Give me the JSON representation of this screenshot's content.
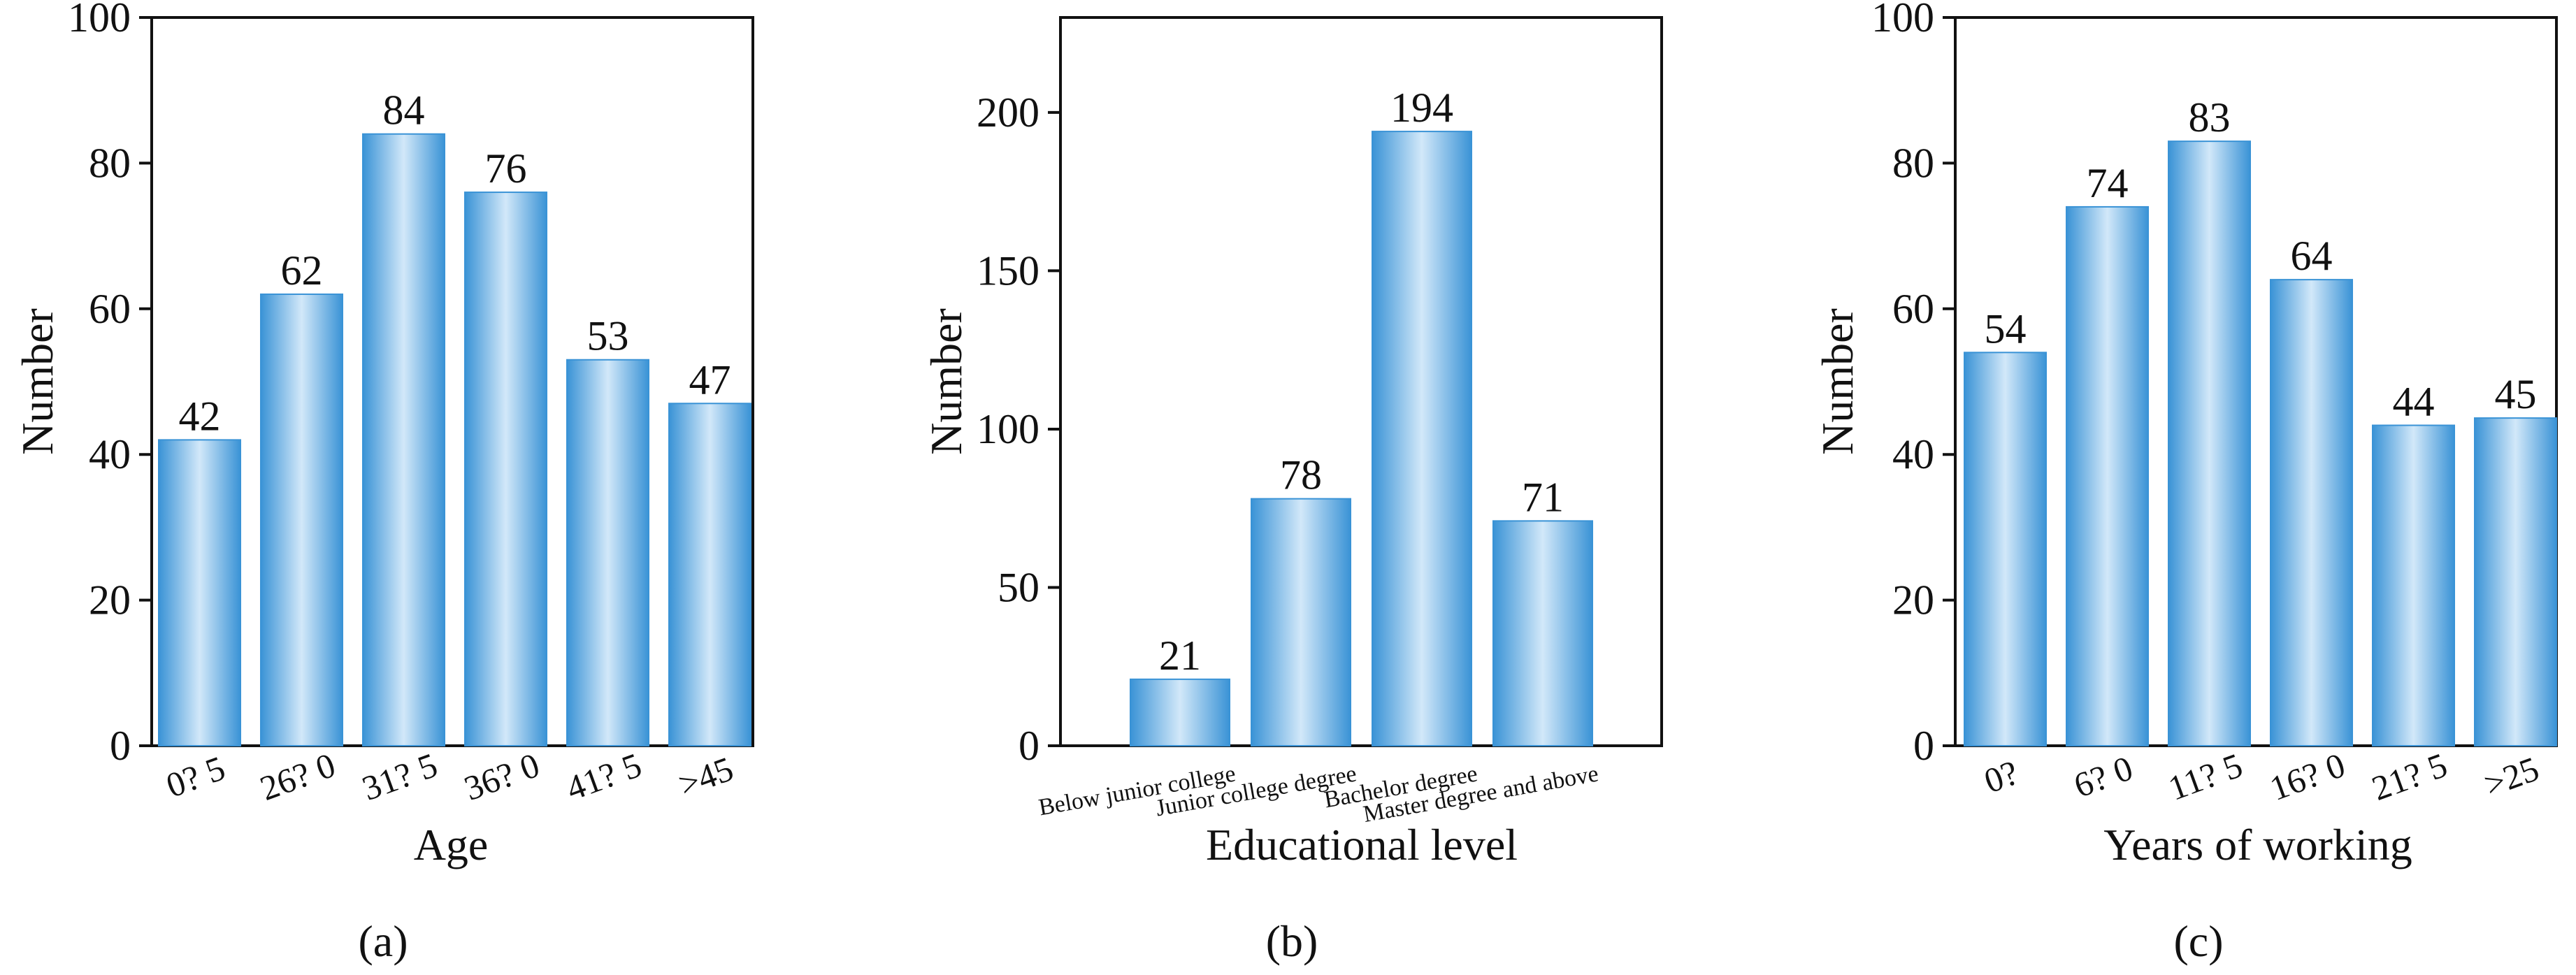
{
  "colors": {
    "bar_edge": "#3a93d6",
    "bar_mid": "#cfe6f8",
    "axis": "#111111",
    "background": "#ffffff"
  },
  "chart_data": [
    {
      "type": "bar",
      "panel_label": "(a)",
      "title": "",
      "xlabel": "Age",
      "ylabel": "Number",
      "ylim": [
        0,
        100
      ],
      "yticks": [
        0,
        20,
        40,
        60,
        80,
        100
      ],
      "categories": [
        "0? 5",
        "26? 0",
        "31? 5",
        "36? 0",
        "41? 5",
        ">45"
      ],
      "values": [
        42,
        62,
        84,
        76,
        53,
        47
      ],
      "data_labels": [
        "42",
        "62",
        "84",
        "76",
        "53",
        "47"
      ],
      "grid": false,
      "legend": "none"
    },
    {
      "type": "bar",
      "panel_label": "(b)",
      "title": "",
      "xlabel": "Educational level",
      "ylabel": "Number",
      "ylim": [
        0,
        230
      ],
      "yticks": [
        0,
        50,
        100,
        150,
        200
      ],
      "categories": [
        "Below junior college",
        "Junior college degree",
        "Bachelor degree",
        "Master degree and above"
      ],
      "values": [
        21,
        78,
        194,
        71
      ],
      "data_labels": [
        "21",
        "78",
        "194",
        "71"
      ],
      "grid": false,
      "legend": "none"
    },
    {
      "type": "bar",
      "panel_label": "(c)",
      "title": "",
      "xlabel": "Years of working",
      "ylabel": "Number",
      "ylim": [
        0,
        100
      ],
      "yticks": [
        0,
        20,
        40,
        60,
        80,
        100
      ],
      "categories": [
        "0? ",
        "6? 0",
        "11? 5",
        "16? 0",
        "21? 5",
        ">25"
      ],
      "values": [
        54,
        74,
        83,
        64,
        44,
        45
      ],
      "data_labels": [
        "54",
        "74",
        "83",
        "64",
        "44",
        "45"
      ],
      "grid": false,
      "legend": "none"
    }
  ]
}
